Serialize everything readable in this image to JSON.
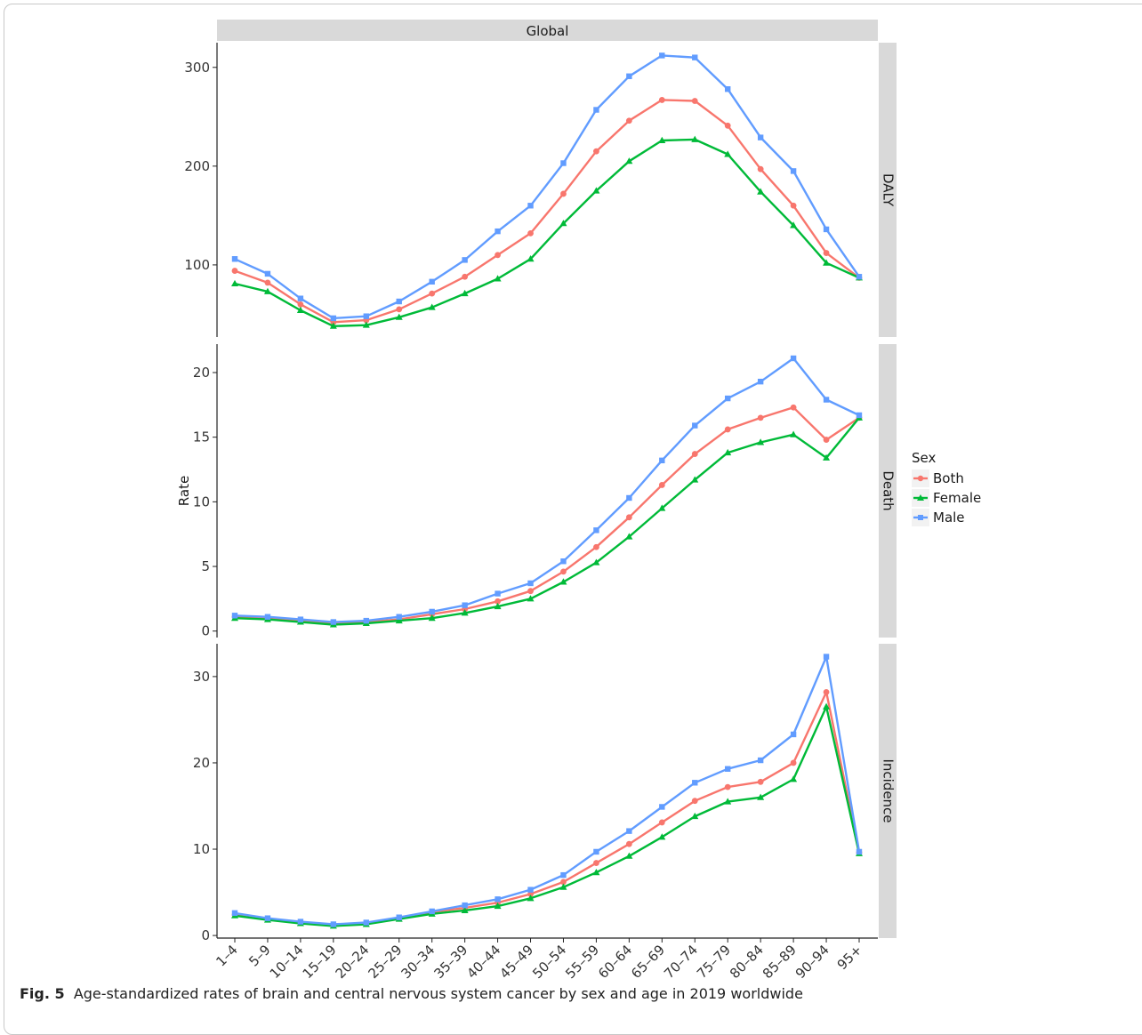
{
  "caption": {
    "label": "Fig. 5",
    "text": "Age-standardized rates of brain and central nervous system cancer by sex and age in 2019 worldwide"
  },
  "chart_data": {
    "type": "line",
    "title": "Global",
    "ylabel": "Rate",
    "xlabel": "",
    "legend": {
      "title": "Sex",
      "placement": "right",
      "entries": [
        "Both",
        "Female",
        "Male"
      ]
    },
    "categories": [
      "1–4",
      "5–9",
      "10–14",
      "15–19",
      "20–24",
      "25–29",
      "30–34",
      "35–39",
      "40–44",
      "45–49",
      "50–54",
      "55–59",
      "60–64",
      "65–69",
      "70–74",
      "75–79",
      "80–84",
      "85–89",
      "90–94",
      "95+"
    ],
    "series_styles": [
      {
        "name": "Both",
        "color": "#F8766D",
        "marker": "circle"
      },
      {
        "name": "Female",
        "color": "#00BA38",
        "marker": "triangle"
      },
      {
        "name": "Male",
        "color": "#619CFF",
        "marker": "square"
      }
    ],
    "panels": [
      {
        "strip": "DALY",
        "ylim": [
          27,
          325
        ],
        "yticks": [
          100,
          200,
          300
        ],
        "series": [
          {
            "name": "Both",
            "values": [
              94,
              82,
              60,
              42,
              44,
              55,
              71,
              88,
              110,
              132,
              172,
              215,
              246,
              267,
              266,
              241,
              197,
              160,
              112,
              87
            ]
          },
          {
            "name": "Female",
            "values": [
              81,
              73,
              54,
              38,
              39,
              47,
              57,
              71,
              86,
              106,
              142,
              175,
              205,
              226,
              227,
              212,
              174,
              140,
              102,
              87
            ]
          },
          {
            "name": "Male",
            "values": [
              106,
              91,
              66,
              46,
              48,
              63,
              83,
              105,
              134,
              160,
              203,
              257,
              291,
              312,
              310,
              278,
              229,
              195,
              136,
              88
            ]
          }
        ]
      },
      {
        "strip": "Death",
        "ylim": [
          -0.5,
          22.2
        ],
        "yticks": [
          0,
          5,
          10,
          15,
          20
        ],
        "series": [
          {
            "name": "Both",
            "values": [
              1.1,
              1.0,
              0.8,
              0.6,
              0.7,
              0.9,
              1.3,
              1.7,
              2.3,
              3.1,
              4.6,
              6.5,
              8.8,
              11.3,
              13.7,
              15.6,
              16.5,
              17.3,
              14.8,
              16.5
            ]
          },
          {
            "name": "Female",
            "values": [
              1.0,
              0.9,
              0.7,
              0.5,
              0.6,
              0.8,
              1.0,
              1.4,
              1.9,
              2.5,
              3.8,
              5.3,
              7.3,
              9.5,
              11.7,
              13.8,
              14.6,
              15.2,
              13.4,
              16.5
            ]
          },
          {
            "name": "Male",
            "values": [
              1.2,
              1.1,
              0.9,
              0.7,
              0.8,
              1.1,
              1.5,
              2.0,
              2.9,
              3.7,
              5.4,
              7.8,
              10.3,
              13.2,
              15.9,
              18.0,
              19.3,
              21.1,
              17.9,
              16.7
            ]
          }
        ]
      },
      {
        "strip": "Incidence",
        "ylim": [
          -0.3,
          33.8
        ],
        "yticks": [
          0,
          10,
          20,
          30
        ],
        "series": [
          {
            "name": "Both",
            "values": [
              2.4,
              1.9,
              1.5,
              1.2,
              1.4,
              2.0,
              2.7,
              3.2,
              3.8,
              4.8,
              6.2,
              8.4,
              10.6,
              13.1,
              15.6,
              17.2,
              17.8,
              20.0,
              28.2,
              9.6
            ]
          },
          {
            "name": "Female",
            "values": [
              2.3,
              1.8,
              1.4,
              1.1,
              1.3,
              1.9,
              2.5,
              2.9,
              3.4,
              4.3,
              5.6,
              7.3,
              9.2,
              11.4,
              13.8,
              15.5,
              16.0,
              18.1,
              26.5,
              9.5
            ]
          },
          {
            "name": "Male",
            "values": [
              2.6,
              2.0,
              1.6,
              1.3,
              1.5,
              2.1,
              2.8,
              3.5,
              4.2,
              5.3,
              7.0,
              9.7,
              12.1,
              14.9,
              17.7,
              19.3,
              20.3,
              23.3,
              32.3,
              9.7
            ]
          }
        ]
      }
    ]
  }
}
